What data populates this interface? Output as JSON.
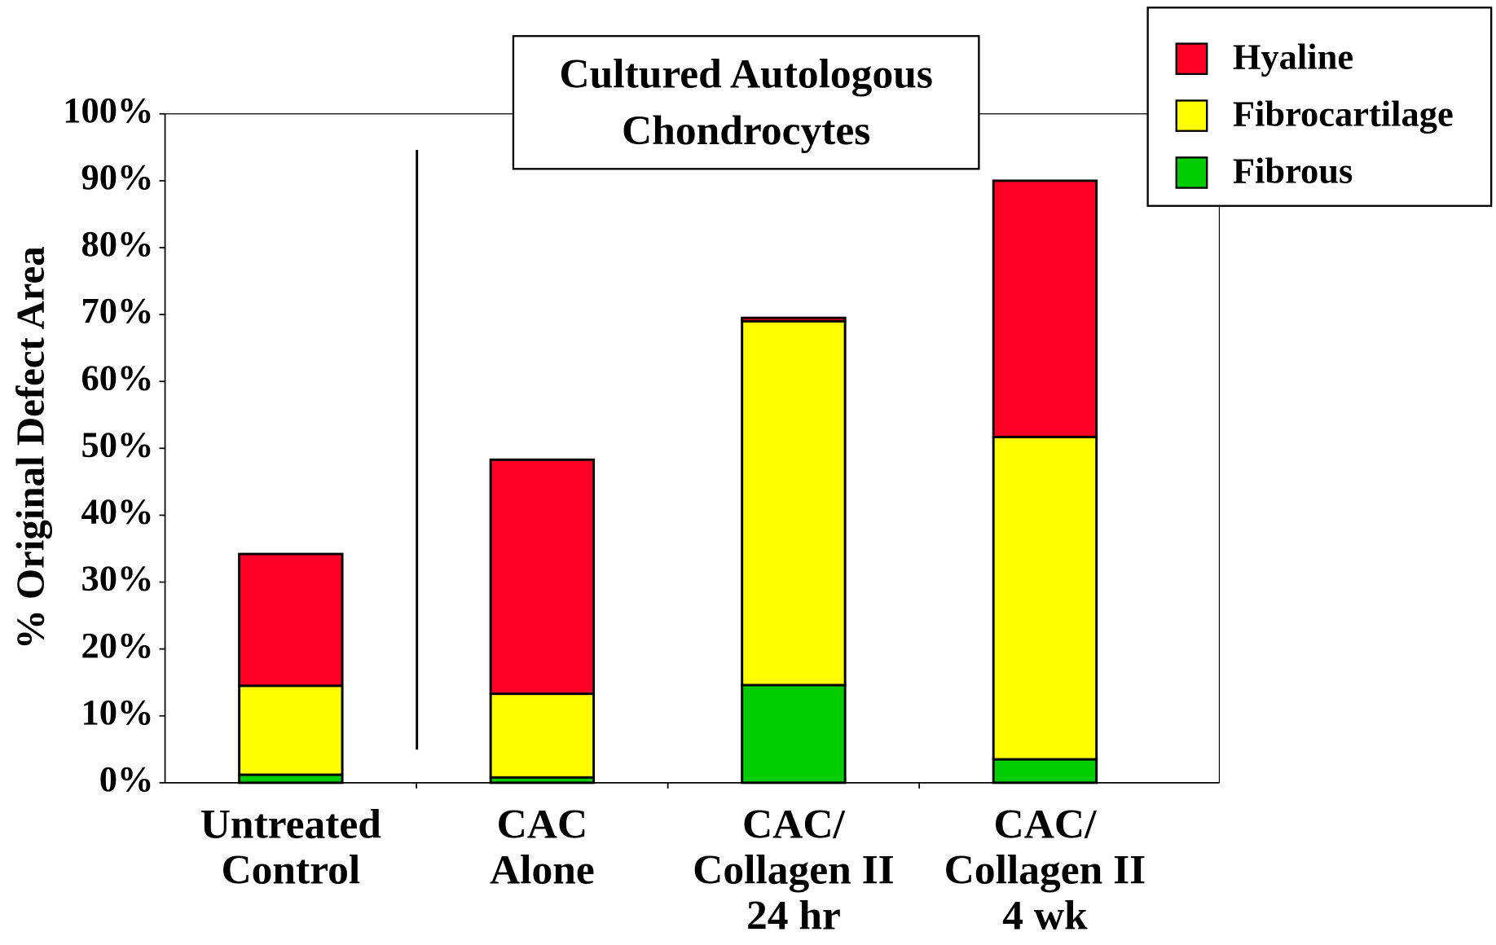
{
  "chart_data": {
    "type": "stacked_bar",
    "title": [
      "Cultured Autologous",
      "Chondrocytes"
    ],
    "ylabel": "% Original Defect Area",
    "categories": [
      [
        "Untreated",
        "Control"
      ],
      [
        "CAC",
        "Alone"
      ],
      [
        "CAC/",
        "Collagen II",
        "24 hr"
      ],
      [
        "CAC/",
        "Collagen II",
        "4 wk"
      ]
    ],
    "series": [
      {
        "name": "Hyaline",
        "color": "#ff0026",
        "values": [
          19.7,
          35,
          0.5,
          38.3
        ]
      },
      {
        "name": "Fibrocartilage",
        "color": "#ffff00",
        "values": [
          13.3,
          12.5,
          54.4,
          48.2
        ]
      },
      {
        "name": "Fibrous",
        "color": "#00cc00",
        "values": [
          1.2,
          0.8,
          14.6,
          3.5
        ]
      }
    ],
    "ylim": [
      0,
      100
    ],
    "yticks": [
      {
        "value": 0,
        "label": "0%"
      },
      {
        "value": 10,
        "label": "10%"
      },
      {
        "value": 20,
        "label": "20%"
      },
      {
        "value": 30,
        "label": "30%"
      },
      {
        "value": 40,
        "label": "40%"
      },
      {
        "value": 50,
        "label": "50%"
      },
      {
        "value": 60,
        "label": "60%"
      },
      {
        "value": 70,
        "label": "70%"
      },
      {
        "value": 80,
        "label": "80%"
      },
      {
        "value": 90,
        "label": "90%"
      },
      {
        "value": 100,
        "label": "100%"
      }
    ],
    "legend": "top-right"
  }
}
